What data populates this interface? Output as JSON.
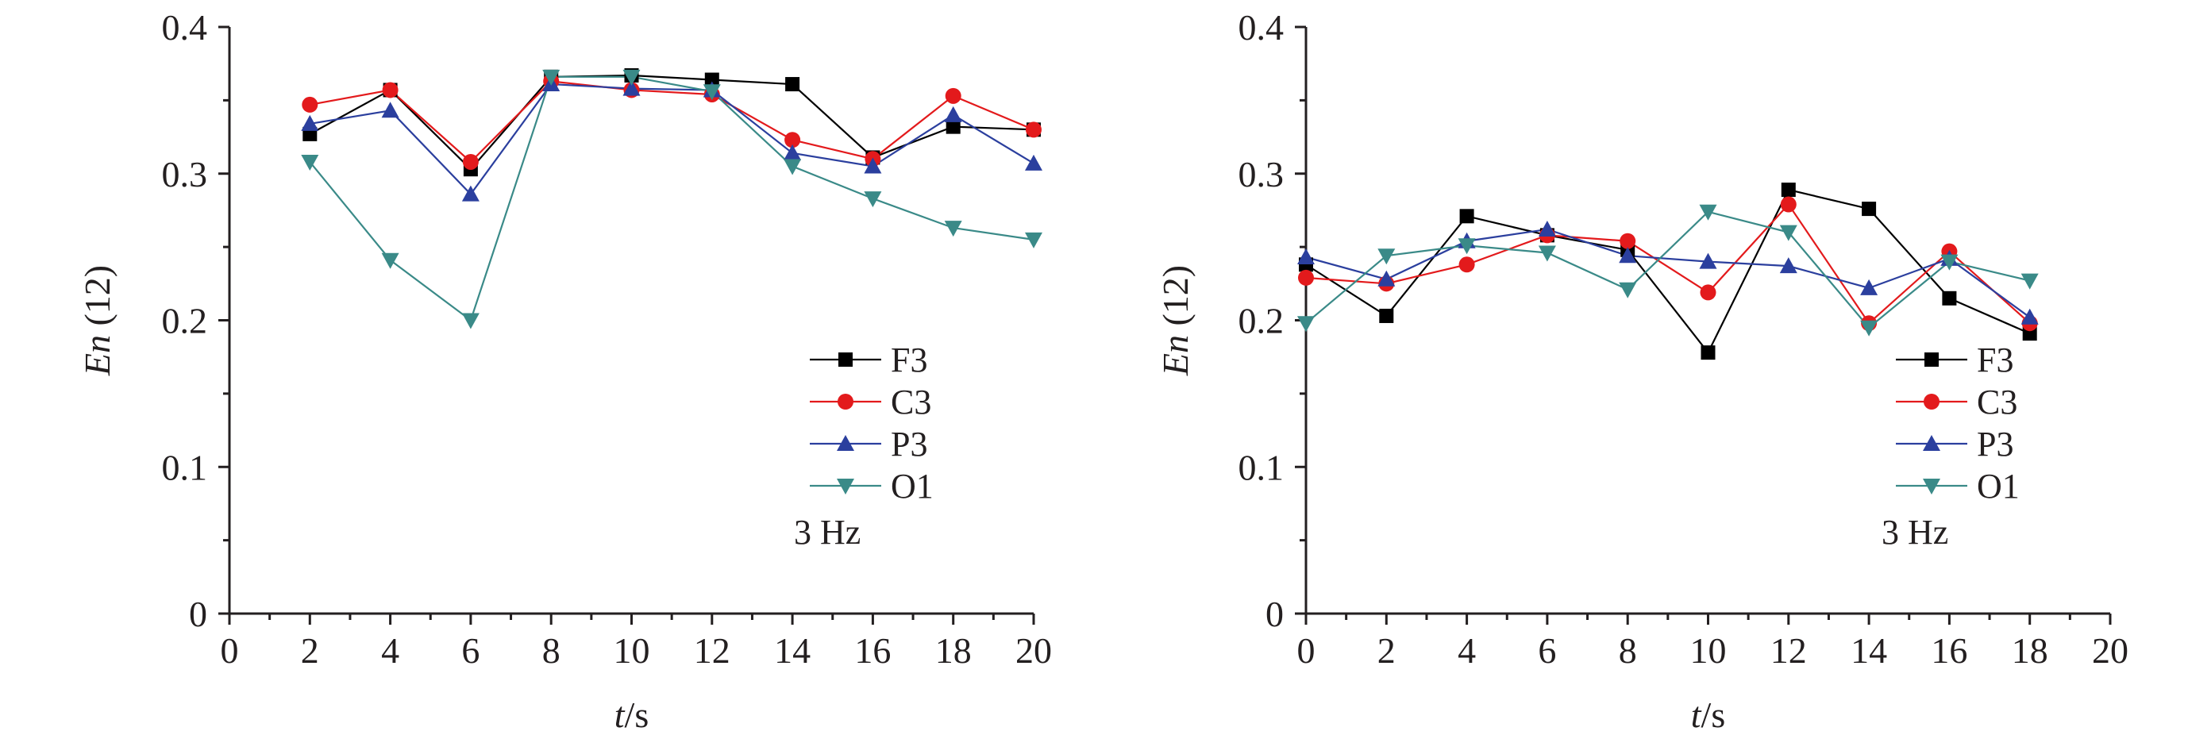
{
  "figure": {
    "panels": [
      {
        "id": "left",
        "freq_label": "3 Hz"
      },
      {
        "id": "right",
        "freq_label": "3 Hz"
      }
    ]
  },
  "chart_data": [
    {
      "type": "line",
      "xlabel_var": "t",
      "xlabel_unit": "/s",
      "ylabel_var": "En",
      "ylabel_arg": " (12)",
      "xlim": [
        0,
        20
      ],
      "ylim": [
        0,
        0.4
      ],
      "xticks": [
        0,
        2,
        4,
        6,
        8,
        10,
        12,
        14,
        16,
        18,
        20
      ],
      "yticks": [
        0,
        0.1,
        0.2,
        0.3,
        0.4
      ],
      "ytick_labels": [
        "0",
        "0.1",
        "0.2",
        "0.3",
        "0.4"
      ],
      "legend_position": "lower-right",
      "annotation": "3 Hz",
      "x": [
        2,
        4,
        6,
        8,
        10,
        12,
        14,
        16,
        18,
        20
      ],
      "series": [
        {
          "name": "F3",
          "color": "#000000",
          "marker": "square",
          "values": [
            0.327,
            0.357,
            0.303,
            0.366,
            0.367,
            0.364,
            0.361,
            0.311,
            0.332,
            0.33
          ]
        },
        {
          "name": "C3",
          "color": "#e31a1c",
          "marker": "circle",
          "values": [
            0.347,
            0.357,
            0.308,
            0.363,
            0.357,
            0.354,
            0.323,
            0.31,
            0.353,
            0.33
          ]
        },
        {
          "name": "P3",
          "color": "#2b3f9e",
          "marker": "triangle-up",
          "values": [
            0.334,
            0.343,
            0.286,
            0.361,
            0.358,
            0.357,
            0.314,
            0.305,
            0.34,
            0.307
          ]
        },
        {
          "name": "O1",
          "color": "#3a8a88",
          "marker": "triangle-down",
          "values": [
            0.308,
            0.241,
            0.2,
            0.366,
            0.366,
            0.356,
            0.305,
            0.283,
            0.263,
            0.255
          ]
        }
      ]
    },
    {
      "type": "line",
      "xlabel_var": "t",
      "xlabel_unit": "/s",
      "ylabel_var": "En",
      "ylabel_arg": " (12)",
      "xlim": [
        0,
        20
      ],
      "ylim": [
        0,
        0.4
      ],
      "xticks": [
        0,
        2,
        4,
        6,
        8,
        10,
        12,
        14,
        16,
        18,
        20
      ],
      "yticks": [
        0,
        0.1,
        0.2,
        0.3,
        0.4
      ],
      "ytick_labels": [
        "0",
        "0.1",
        "0.2",
        "0.3",
        "0.4"
      ],
      "legend_position": "lower-right",
      "annotation": "3 Hz",
      "x": [
        0,
        2,
        4,
        6,
        8,
        10,
        12,
        14,
        16,
        18
      ],
      "series": [
        {
          "name": "F3",
          "color": "#000000",
          "marker": "square",
          "values": [
            0.238,
            0.203,
            0.271,
            0.258,
            0.248,
            0.178,
            0.289,
            0.276,
            0.215,
            0.191
          ]
        },
        {
          "name": "C3",
          "color": "#e31a1c",
          "marker": "circle",
          "values": [
            0.229,
            0.225,
            0.238,
            0.258,
            0.254,
            0.219,
            0.279,
            0.198,
            0.247,
            0.198
          ]
        },
        {
          "name": "P3",
          "color": "#2b3f9e",
          "marker": "triangle-up",
          "values": [
            0.243,
            0.228,
            0.254,
            0.262,
            0.244,
            0.24,
            0.237,
            0.222,
            0.242,
            0.202
          ]
        },
        {
          "name": "O1",
          "color": "#3a8a88",
          "marker": "triangle-down",
          "values": [
            0.198,
            0.244,
            0.251,
            0.246,
            0.221,
            0.274,
            0.26,
            0.195,
            0.24,
            0.227
          ]
        }
      ]
    }
  ]
}
